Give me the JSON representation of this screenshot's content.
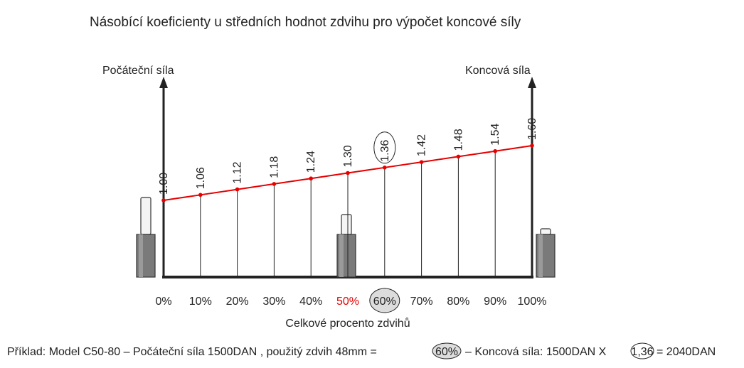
{
  "chart_data": {
    "type": "line",
    "title": "Násobící koeficienty u středních hodnot zdvihu pro výpočet koncové síly",
    "left_axis_label": "Počáteční síla",
    "right_axis_label": "Koncová síla",
    "xlabel": "Celkové procento zdvihů",
    "categories": [
      "0%",
      "10%",
      "20%",
      "30%",
      "40%",
      "50%",
      "60%",
      "70%",
      "80%",
      "90%",
      "100%"
    ],
    "x": [
      0,
      10,
      20,
      30,
      40,
      50,
      60,
      70,
      80,
      90,
      100
    ],
    "value_labels": [
      "1.00",
      "1.06",
      "1.12",
      "1.18",
      "1.24",
      "1.30",
      "1.36",
      "1.42",
      "1.48",
      "1.54",
      "1.60"
    ],
    "values": [
      1.0,
      1.06,
      1.12,
      1.18,
      1.24,
      1.3,
      1.36,
      1.42,
      1.48,
      1.54,
      1.6
    ],
    "highlighted_category": "50%",
    "circled_category": "60%",
    "circled_value": "1.36",
    "line_color": "#e60000",
    "highlight_color": "#e60000",
    "grid": false
  },
  "example": {
    "prefix": "Příklad: Model C50-80 – Počáteční síla 1500DAN , použitý zdvih 48mm =",
    "circled_percent": "60%",
    "middle": "– Koncová síla: 1500DAN  X",
    "circled_factor": "1,36",
    "suffix": "= 2040DAN"
  }
}
